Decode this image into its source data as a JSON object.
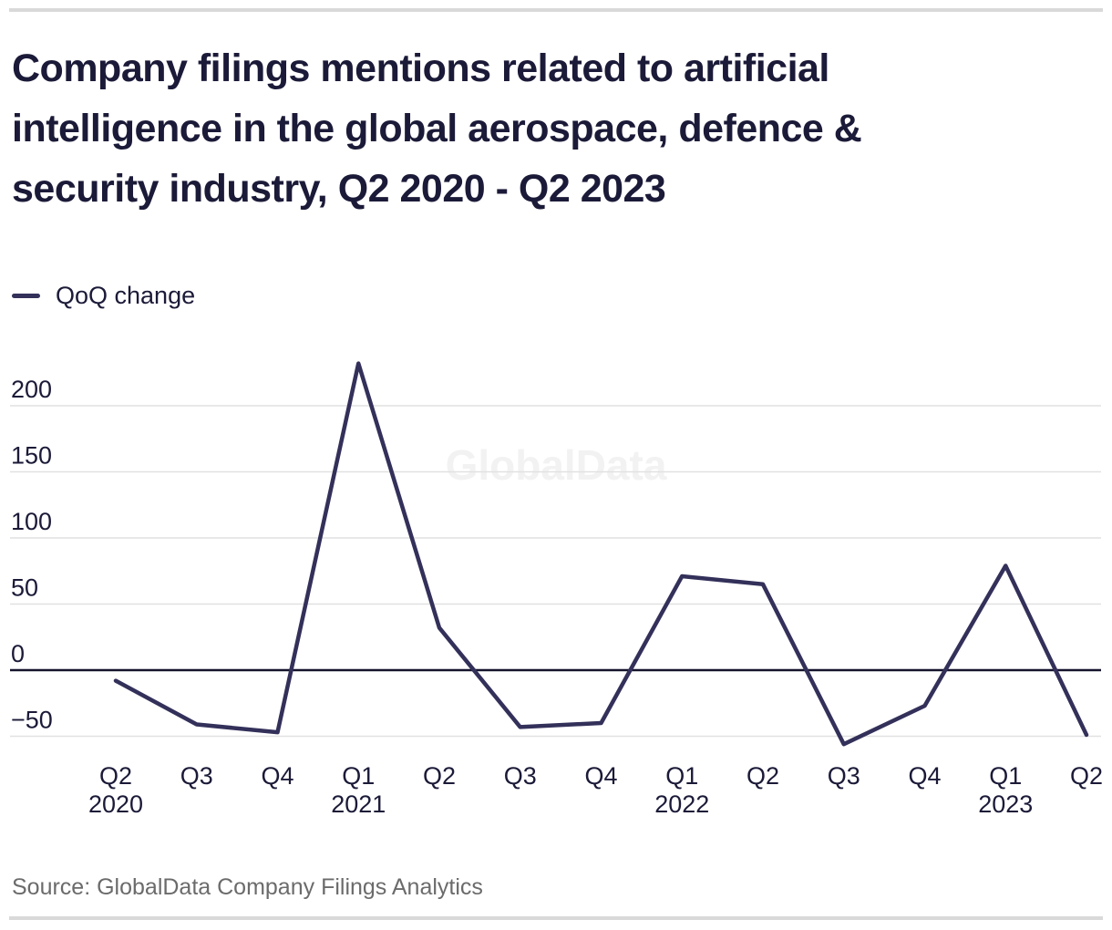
{
  "page": {
    "title": "Company filings mentions related to artificial intelligence in the global aerospace, defence & security industry, Q2 2020 - Q2 2023",
    "source": "Source: GlobalData Company Filings Analytics",
    "watermark": "GlobalData"
  },
  "legend": {
    "label": "QoQ change"
  },
  "colors": {
    "text_navy": "#1b1a38",
    "line": "#33305a",
    "zero_axis": "#14132c",
    "gridline": "#e1e1e1",
    "frame_bar": "#d9d9d9",
    "source_text": "#6b6b6b",
    "watermark": "#f2f2f2",
    "background": "#ffffff"
  },
  "chart_data": {
    "type": "line",
    "title": "Company filings mentions related to artificial intelligence in the global aerospace, defence & security industry, Q2 2020 - Q2 2023",
    "categories": [
      "Q2 2020",
      "Q3 2020",
      "Q4 2020",
      "Q1 2021",
      "Q2 2021",
      "Q3 2021",
      "Q4 2021",
      "Q1 2022",
      "Q2 2022",
      "Q3 2022",
      "Q4 2022",
      "Q1 2023",
      "Q2 2023"
    ],
    "series": [
      {
        "name": "QoQ change",
        "values": [
          -8,
          -41,
          -47,
          232,
          32,
          -43,
          -40,
          71,
          65,
          -56,
          -27,
          79,
          -49
        ]
      }
    ],
    "xlabel": "",
    "ylabel": "",
    "y_ticks": [
      200,
      150,
      100,
      50,
      0,
      -50
    ],
    "ylim": [
      -75,
      245
    ],
    "grid": "horizontal",
    "zero_axis_emphasized": true,
    "legend_position": "top-left",
    "source": "Source: GlobalData Company Filings Analytics",
    "watermark": "GlobalData"
  }
}
